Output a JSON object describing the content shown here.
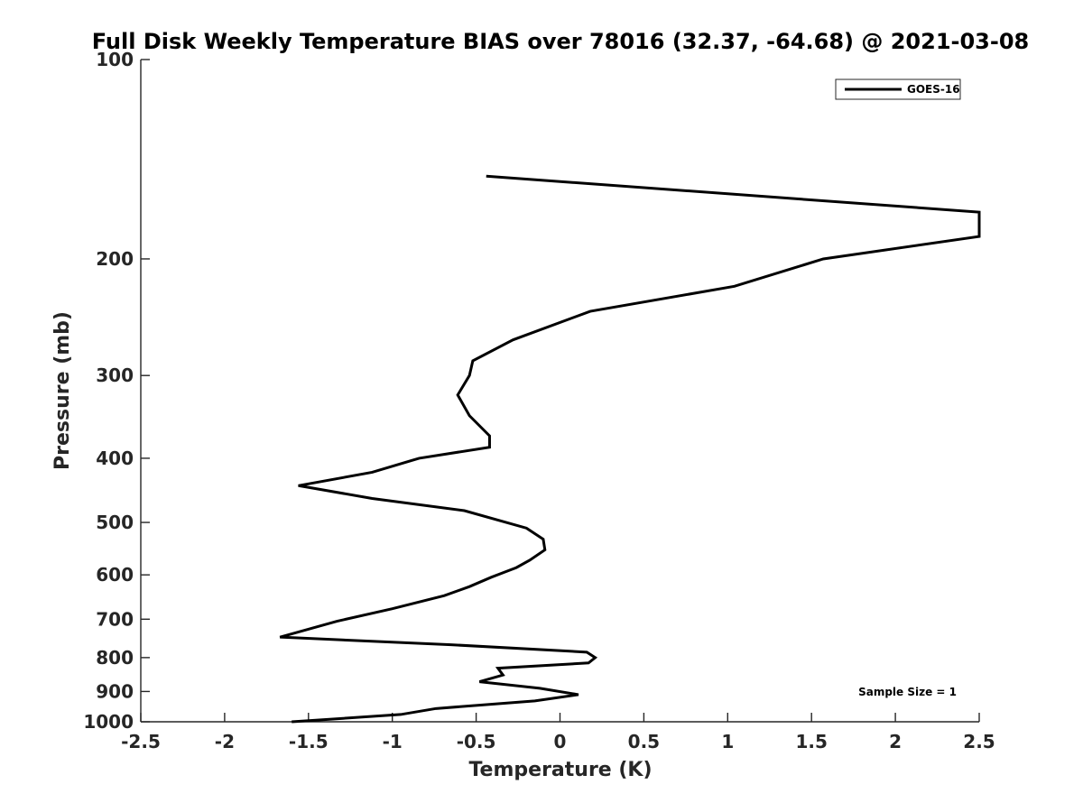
{
  "chart_data": {
    "type": "line",
    "title": "Full Disk Weekly Temperature BIAS over 78016 (32.37, -64.68) @ 2021-03-08",
    "xlabel": "Temperature (K)",
    "ylabel": "Pressure (mb)",
    "xlim": [
      -2.5,
      2.5
    ],
    "ylim": [
      1000,
      100
    ],
    "y_scale": "log",
    "y_reversed": true,
    "grid": false,
    "x_ticks": [
      -2.5,
      -2,
      -1.5,
      -1,
      -0.5,
      0,
      0.5,
      1,
      1.5,
      2,
      2.5
    ],
    "x_tick_labels": [
      "-2.5",
      "-2",
      "-1.5",
      "-1",
      "-0.5",
      "0",
      "0.5",
      "1",
      "1.5",
      "2",
      "2.5"
    ],
    "y_ticks": [
      100,
      200,
      300,
      400,
      500,
      600,
      700,
      800,
      900,
      1000
    ],
    "y_tick_labels": [
      "100",
      "200",
      "300",
      "400",
      "500",
      "600",
      "700",
      "800",
      "900",
      "1000"
    ],
    "legend": {
      "placement": "top-right",
      "entries": [
        "GOES-16"
      ]
    },
    "annotation": "Sample Size = 1",
    "line_color": "#000000",
    "series": [
      {
        "name": "GOES-16",
        "points": [
          [
            -0.44,
            150
          ],
          [
            2.5,
            170
          ],
          [
            2.5,
            185
          ],
          [
            1.57,
            200
          ],
          [
            1.04,
            220
          ],
          [
            0.18,
            240
          ],
          [
            -0.28,
            265
          ],
          [
            -0.52,
            285
          ],
          [
            -0.54,
            300
          ],
          [
            -0.61,
            321
          ],
          [
            -0.54,
            345
          ],
          [
            -0.42,
            370
          ],
          [
            -0.42,
            385
          ],
          [
            -0.84,
            400
          ],
          [
            -1.12,
            420
          ],
          [
            -1.56,
            440
          ],
          [
            -1.12,
            460
          ],
          [
            -0.57,
            480
          ],
          [
            -0.2,
            510
          ],
          [
            -0.1,
            530
          ],
          [
            -0.09,
            550
          ],
          [
            -0.18,
            570
          ],
          [
            -0.26,
            585
          ],
          [
            -0.41,
            605
          ],
          [
            -0.54,
            625
          ],
          [
            -0.69,
            645
          ],
          [
            -1.0,
            675
          ],
          [
            -1.33,
            705
          ],
          [
            -1.67,
            745
          ],
          [
            -0.65,
            765
          ],
          [
            0.16,
            785
          ],
          [
            0.21,
            800
          ],
          [
            0.17,
            815
          ],
          [
            -0.37,
            830
          ],
          [
            -0.34,
            850
          ],
          [
            -0.48,
            870
          ],
          [
            -0.12,
            890
          ],
          [
            0.11,
            910
          ],
          [
            -0.15,
            930
          ],
          [
            -0.74,
            955
          ],
          [
            -0.95,
            975
          ],
          [
            -1.6,
            1000
          ]
        ]
      }
    ]
  }
}
